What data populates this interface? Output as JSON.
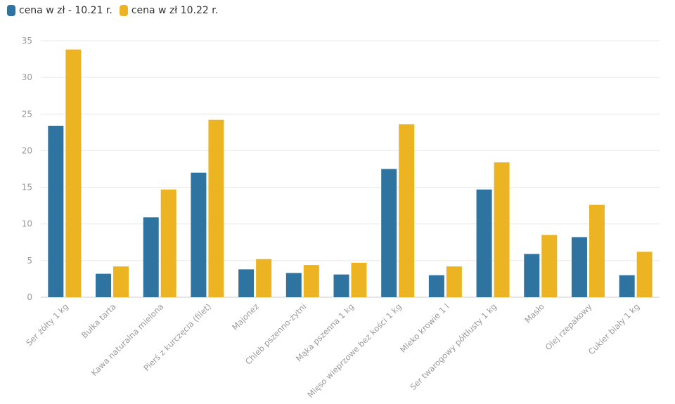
{
  "legend": {
    "series0": "cena w zł - 10.21 r.",
    "series1": "cena w zł 10.22 r."
  },
  "colors": {
    "series0": "#2f73a0",
    "series1": "#ecb423"
  },
  "chart_data": {
    "type": "bar",
    "categories": [
      "Ser żółty 1 kg",
      "Bułka tarta",
      "Kawa naturalna mielona",
      "Pierś z kurczęcia (filet)",
      "Majonez",
      "Chleb pszenno-żytni",
      "Mąka pszenna 1 kg",
      "Mięso wieprzowe bez kości 1 kg",
      "Mleko krowie 1 l",
      "Ser twarogowy półtłusty 1 kg",
      "Masło",
      "Olej rzepakowy",
      "Cukier biały 1 kg"
    ],
    "series": [
      {
        "name": "cena w zł - 10.21 r.",
        "values": [
          23.4,
          3.2,
          10.9,
          17.0,
          3.8,
          3.3,
          3.1,
          17.5,
          3.0,
          14.7,
          5.9,
          8.2,
          3.0
        ]
      },
      {
        "name": "cena w zł 10.22 r.",
        "values": [
          33.8,
          4.2,
          14.7,
          24.2,
          5.2,
          4.4,
          4.7,
          23.6,
          4.2,
          18.4,
          8.5,
          12.6,
          6.2
        ]
      }
    ],
    "yticks": [
      0,
      5,
      10,
      15,
      20,
      25,
      30,
      35
    ],
    "ylim": [
      0,
      35
    ],
    "grid": true,
    "legend_position": "top-left"
  }
}
